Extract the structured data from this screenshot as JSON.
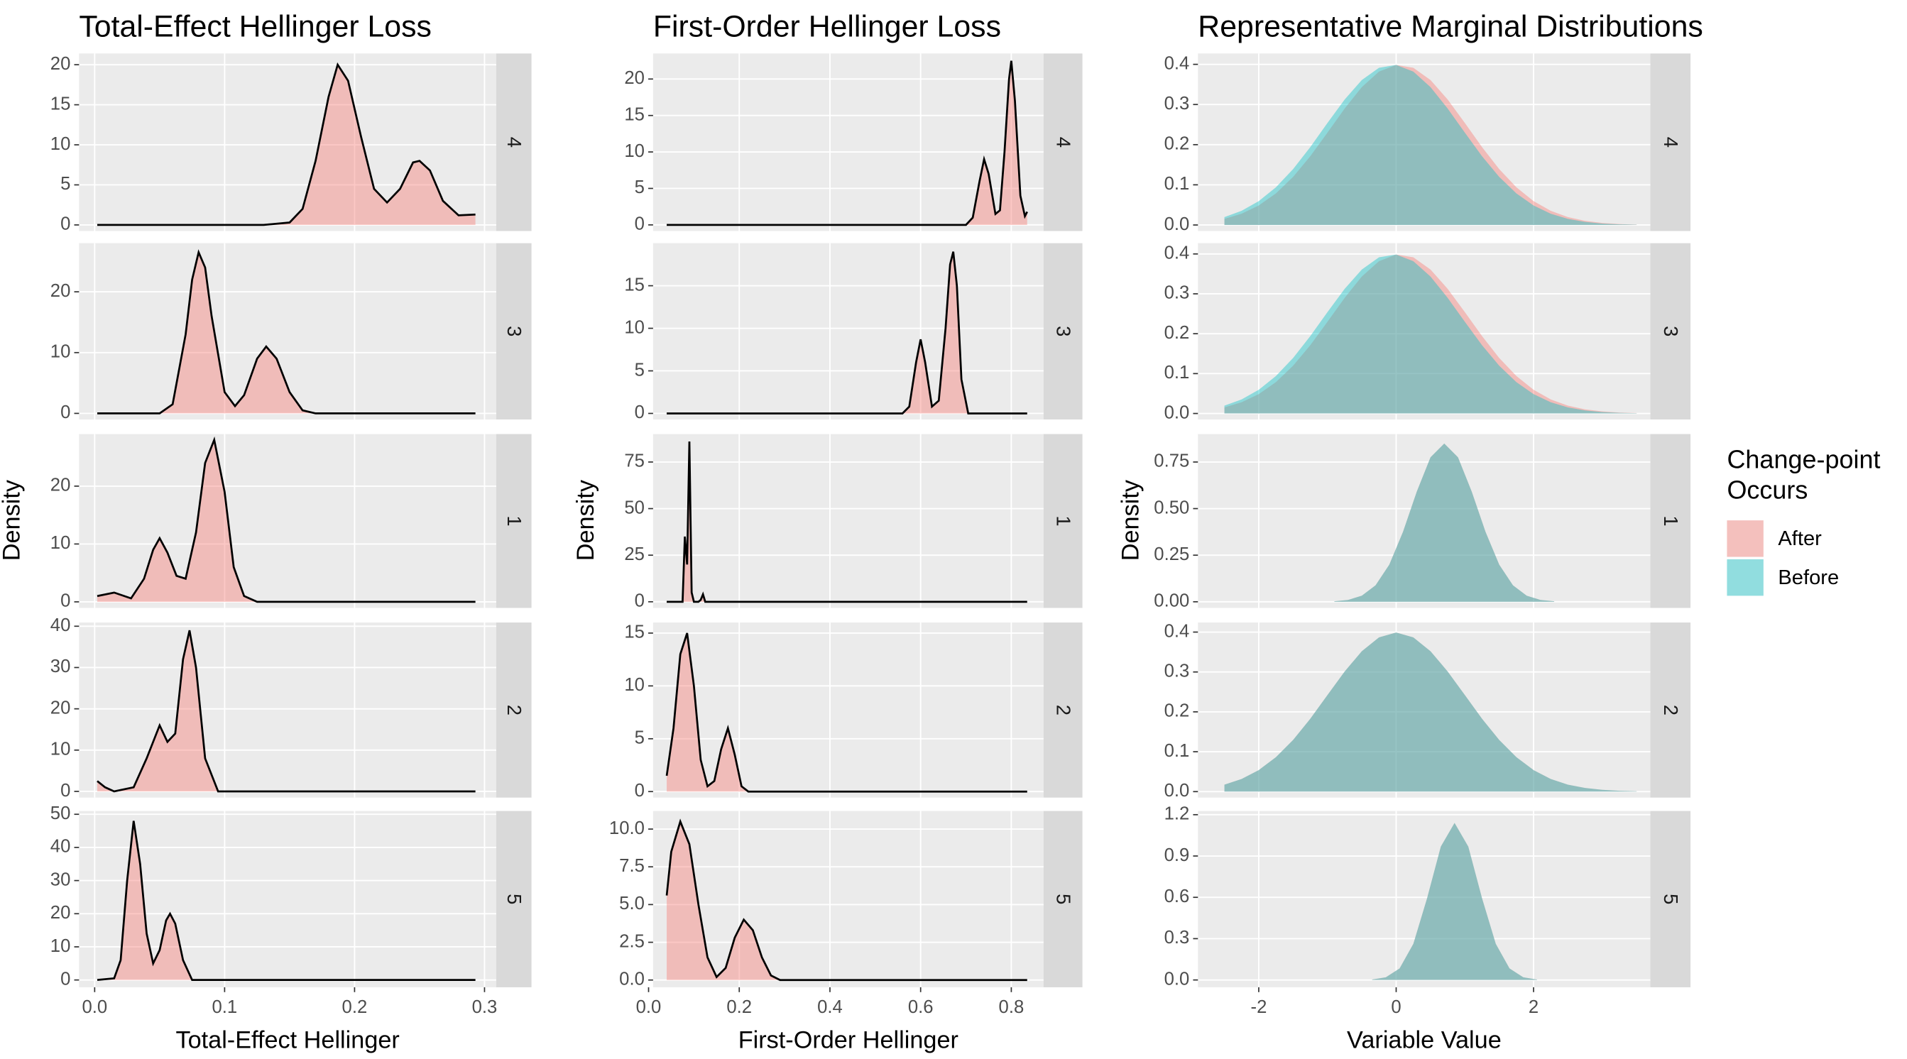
{
  "chart_data": [
    {
      "type": "density",
      "title": "Total-Effect Hellinger Loss",
      "x_label": "Total-Effect Hellinger",
      "y_label": "Density",
      "color": "#F8766D",
      "line_color": "#000000",
      "xlim": [
        -0.012,
        0.309
      ],
      "xticks": [
        {
          "value": 0,
          "label": "0.0"
        },
        {
          "value": 0.1,
          "label": "0.1"
        },
        {
          "value": 0.2,
          "label": "0.2"
        },
        {
          "value": 0.3,
          "label": "0.3"
        }
      ],
      "grid": true,
      "facets": [
        {
          "label": "4",
          "ylim": [
            -0.76,
            21.4
          ],
          "yticks": [
            0,
            5,
            10,
            15,
            20
          ],
          "x": [
            0.002,
            0.13,
            0.15,
            0.16,
            0.17,
            0.18,
            0.187,
            0.195,
            0.205,
            0.215,
            0.225,
            0.235,
            0.245,
            0.25,
            0.258,
            0.268,
            0.28,
            0.293
          ],
          "values": [
            0,
            0,
            0.3,
            2,
            8,
            16,
            20,
            18,
            11,
            4.5,
            2.8,
            4.5,
            7.8,
            8,
            6.8,
            3,
            1.2,
            1.3
          ]
        },
        {
          "label": "3",
          "ylim": [
            -1,
            28
          ],
          "yticks": [
            0,
            10,
            20
          ],
          "x": [
            0.002,
            0.05,
            0.06,
            0.07,
            0.075,
            0.08,
            0.085,
            0.09,
            0.1,
            0.108,
            0.115,
            0.125,
            0.132,
            0.14,
            0.15,
            0.16,
            0.17,
            0.293
          ],
          "values": [
            0,
            0,
            1.5,
            13,
            22,
            26.5,
            24,
            16,
            3.5,
            1.2,
            3,
            9,
            11,
            9,
            3.5,
            0.5,
            0,
            0
          ]
        },
        {
          "label": "1",
          "ylim": [
            -1.05,
            29
          ],
          "yticks": [
            0,
            10,
            20
          ],
          "x": [
            0.002,
            0.015,
            0.028,
            0.038,
            0.045,
            0.05,
            0.056,
            0.063,
            0.07,
            0.078,
            0.085,
            0.092,
            0.1,
            0.107,
            0.115,
            0.125,
            0.293
          ],
          "values": [
            1,
            1.6,
            0.6,
            4,
            9,
            11,
            8.5,
            4.5,
            4,
            12,
            24,
            28,
            19,
            6,
            1,
            0,
            0
          ]
        },
        {
          "label": "2",
          "ylim": [
            -1.5,
            40.9
          ],
          "yticks": [
            0,
            10,
            20,
            30,
            40
          ],
          "x": [
            0.002,
            0.008,
            0.015,
            0.03,
            0.04,
            0.05,
            0.056,
            0.062,
            0.068,
            0.073,
            0.078,
            0.085,
            0.095,
            0.293
          ],
          "values": [
            2.5,
            1,
            0,
            1,
            8,
            16,
            12,
            14,
            32,
            39,
            30,
            8,
            0,
            0
          ]
        },
        {
          "label": "5",
          "ylim": [
            -2.2,
            51
          ],
          "yticks": [
            0,
            10,
            20,
            30,
            40,
            50
          ],
          "x": [
            0.002,
            0.015,
            0.02,
            0.025,
            0.03,
            0.035,
            0.04,
            0.045,
            0.05,
            0.055,
            0.058,
            0.062,
            0.068,
            0.075,
            0.293
          ],
          "values": [
            0,
            0.5,
            6,
            30,
            48,
            35,
            14,
            5,
            9,
            18,
            20,
            17,
            6,
            0,
            0
          ]
        }
      ]
    },
    {
      "type": "density",
      "title": "First-Order Hellinger Loss",
      "x_label": "First-Order Hellinger",
      "y_label": "Density",
      "color": "#F8766D",
      "line_color": "#000000",
      "xlim": [
        0.01,
        0.871
      ],
      "xticks": [
        {
          "value": 0,
          "label": "0.0"
        },
        {
          "value": 0.2,
          "label": "0.2"
        },
        {
          "value": 0.4,
          "label": "0.4"
        },
        {
          "value": 0.6,
          "label": "0.6"
        },
        {
          "value": 0.8,
          "label": "0.8"
        }
      ],
      "grid": true,
      "facets": [
        {
          "label": "4",
          "ylim": [
            -0.84,
            23.5
          ],
          "yticks": [
            0,
            5,
            10,
            15,
            20
          ],
          "x": [
            0.04,
            0.7,
            0.715,
            0.73,
            0.74,
            0.75,
            0.765,
            0.775,
            0.785,
            0.795,
            0.8,
            0.808,
            0.82,
            0.83,
            0.835
          ],
          "values": [
            0,
            0,
            1,
            6,
            9,
            7,
            1.5,
            2,
            10,
            20,
            22.5,
            17,
            4,
            1.2,
            1.8
          ]
        },
        {
          "label": "3",
          "ylim": [
            -0.71,
            20
          ],
          "yticks": [
            0,
            5,
            10,
            15
          ],
          "x": [
            0.04,
            0.56,
            0.575,
            0.59,
            0.6,
            0.61,
            0.625,
            0.64,
            0.655,
            0.665,
            0.672,
            0.68,
            0.69,
            0.705,
            0.835
          ],
          "values": [
            0,
            0,
            0.8,
            6,
            8.7,
            6,
            0.8,
            1.5,
            10,
            17.5,
            19,
            15,
            4,
            0,
            0
          ]
        },
        {
          "label": "1",
          "ylim": [
            -3.3,
            90
          ],
          "yticks": [
            0,
            25,
            50,
            75
          ],
          "x": [
            0.04,
            0.075,
            0.08,
            0.085,
            0.09,
            0.095,
            0.1,
            0.11,
            0.115,
            0.12,
            0.125,
            0.835
          ],
          "values": [
            0,
            0,
            35,
            20,
            86,
            5,
            0,
            0,
            1,
            4,
            0,
            0
          ]
        },
        {
          "label": "2",
          "ylim": [
            -0.57,
            16
          ],
          "yticks": [
            0,
            5,
            10,
            15
          ],
          "x": [
            0.04,
            0.055,
            0.07,
            0.085,
            0.1,
            0.115,
            0.13,
            0.145,
            0.16,
            0.175,
            0.19,
            0.205,
            0.22,
            0.835
          ],
          "values": [
            1.5,
            6,
            13,
            15,
            10,
            3,
            0.5,
            1,
            4,
            6,
            3.5,
            0.5,
            0,
            0
          ]
        },
        {
          "label": "5",
          "ylim": [
            -0.48,
            11.2
          ],
          "yticks": [
            {
              "value": 0,
              "label": "0.0"
            },
            {
              "value": 2.5,
              "label": "2.5"
            },
            {
              "value": 5,
              "label": "5.0"
            },
            {
              "value": 7.5,
              "label": "7.5"
            },
            {
              "value": 10,
              "label": "10.0"
            }
          ],
          "x": [
            0.04,
            0.05,
            0.07,
            0.09,
            0.11,
            0.13,
            0.15,
            0.17,
            0.19,
            0.21,
            0.23,
            0.25,
            0.27,
            0.29,
            0.835
          ],
          "values": [
            5.6,
            8.5,
            10.5,
            9,
            5,
            1.5,
            0.2,
            0.8,
            2.8,
            4,
            3.3,
            1.5,
            0.3,
            0,
            0
          ]
        }
      ]
    },
    {
      "type": "density",
      "title": "Representative Marginal Distributions",
      "x_label": "Variable Value",
      "y_label": "Density",
      "xlim": [
        -2.885,
        3.7
      ],
      "xticks": [
        -2,
        0,
        2
      ],
      "grid": true,
      "legend_title": "Change-point Occurs",
      "series": [
        {
          "name": "After",
          "color": "#F8766D"
        },
        {
          "name": "Before",
          "color": "#00BFC4"
        }
      ],
      "facets": [
        {
          "label": "4",
          "ylim": [
            -0.015,
            0.427
          ],
          "yticks": [
            {
              "value": 0,
              "label": "0.0"
            },
            0.1,
            0.2,
            0.3,
            0.4
          ],
          "x": [
            -2.5,
            -2.25,
            -2,
            -1.75,
            -1.5,
            -1.25,
            -1,
            -0.75,
            -0.5,
            -0.25,
            0,
            0.25,
            0.5,
            0.75,
            1,
            1.25,
            1.5,
            1.75,
            2,
            2.25,
            2.5,
            2.75,
            3,
            3.25,
            3.5
          ],
          "series": [
            {
              "values": [
                0.0153,
                0.0281,
                0.0486,
                0.0787,
                0.1198,
                0.1712,
                0.2299,
                0.2898,
                0.3433,
                0.3819,
                0.3984,
                0.3915,
                0.3609,
                0.3124,
                0.2541,
                0.194,
                0.1392,
                0.0939,
                0.0594,
                0.0353,
                0.0197,
                0.0104,
                0.0051,
                0.0023,
                0.0011
              ]
            },
            {
              "values": [
                0.0197,
                0.0353,
                0.0594,
                0.0939,
                0.1392,
                0.194,
                0.2541,
                0.3124,
                0.3609,
                0.3915,
                0.3984,
                0.3819,
                0.3433,
                0.2898,
                0.2299,
                0.1712,
                0.1198,
                0.0787,
                0.0486,
                0.0281,
                0.0153,
                0.0077,
                0.0036,
                0.0016,
                0.0007
              ]
            }
          ]
        },
        {
          "label": "3",
          "ylim": [
            -0.015,
            0.427
          ],
          "yticks": [
            {
              "value": 0,
              "label": "0.0"
            },
            0.1,
            0.2,
            0.3,
            0.4
          ],
          "x": [
            -2.5,
            -2.25,
            -2,
            -1.75,
            -1.5,
            -1.25,
            -1,
            -0.75,
            -0.5,
            -0.25,
            0,
            0.25,
            0.5,
            0.75,
            1,
            1.25,
            1.5,
            1.75,
            2,
            2.25,
            2.5,
            2.75,
            3,
            3.25,
            3.5
          ],
          "series": [
            {
              "values": [
                0.0153,
                0.0281,
                0.0486,
                0.0787,
                0.1198,
                0.1712,
                0.2299,
                0.2898,
                0.3433,
                0.3819,
                0.3984,
                0.3915,
                0.3609,
                0.3124,
                0.2541,
                0.194,
                0.1392,
                0.0939,
                0.0594,
                0.0353,
                0.0197,
                0.0104,
                0.0051,
                0.0023,
                0.0011
              ]
            },
            {
              "values": [
                0.0197,
                0.0353,
                0.0594,
                0.0939,
                0.1392,
                0.194,
                0.2541,
                0.3124,
                0.3609,
                0.3915,
                0.3984,
                0.3819,
                0.3433,
                0.2898,
                0.2299,
                0.1712,
                0.1198,
                0.0787,
                0.0486,
                0.0281,
                0.0153,
                0.0077,
                0.0036,
                0.0016,
                0.0007
              ]
            }
          ]
        },
        {
          "label": "1",
          "ylim": [
            -0.033,
            0.9
          ],
          "yticks": [
            {
              "value": 0,
              "label": "0.00"
            },
            0.25,
            {
              "value": 0.5,
              "label": "0.50"
            },
            0.75
          ],
          "x": [
            -0.9,
            -0.7,
            -0.5,
            -0.3,
            -0.1,
            0.1,
            0.3,
            0.5,
            0.7,
            0.9,
            1.1,
            1.3,
            1.5,
            1.7,
            1.9,
            2.1,
            2.3
          ],
          "series": [
            {
              "values": [
                0.0026,
                0.01,
                0.0326,
                0.0883,
                0.1994,
                0.3758,
                0.591,
                0.7756,
                0.849,
                0.7756,
                0.591,
                0.3758,
                0.1994,
                0.0883,
                0.0326,
                0.01,
                0.0026
              ]
            },
            {
              "values": [
                0.0026,
                0.01,
                0.0326,
                0.0883,
                0.1994,
                0.3758,
                0.591,
                0.7756,
                0.849,
                0.7756,
                0.591,
                0.3758,
                0.1994,
                0.0883,
                0.0326,
                0.01,
                0.0026
              ]
            }
          ]
        },
        {
          "label": "2",
          "ylim": [
            -0.015,
            0.424
          ],
          "yticks": [
            {
              "value": 0,
              "label": "0.0"
            },
            0.1,
            0.2,
            0.3,
            0.4
          ],
          "x": [
            -2.5,
            -2.25,
            -2,
            -1.75,
            -1.5,
            -1.25,
            -1,
            -0.75,
            -0.5,
            -0.25,
            0,
            0.25,
            0.5,
            0.75,
            1,
            1.25,
            1.5,
            1.75,
            2,
            2.25,
            2.5,
            2.75,
            3,
            3.25,
            3.5
          ],
          "series": [
            {
              "values": [
                0.0175,
                0.0317,
                0.054,
                0.0863,
                0.1295,
                0.1826,
                0.242,
                0.3011,
                0.3521,
                0.3867,
                0.3989,
                0.3867,
                0.3521,
                0.3011,
                0.242,
                0.1826,
                0.1295,
                0.0863,
                0.054,
                0.0317,
                0.0175,
                0.0091,
                0.0044,
                0.002,
                0.0009
              ]
            },
            {
              "values": [
                0.0175,
                0.0317,
                0.054,
                0.0863,
                0.1295,
                0.1826,
                0.242,
                0.3011,
                0.3521,
                0.3867,
                0.3989,
                0.3867,
                0.3521,
                0.3011,
                0.242,
                0.1826,
                0.1295,
                0.0863,
                0.054,
                0.0317,
                0.0175,
                0.0091,
                0.0044,
                0.002,
                0.0009
              ]
            }
          ]
        },
        {
          "label": "5",
          "ylim": [
            -0.053,
            1.227
          ],
          "yticks": [
            {
              "value": 0,
              "label": "0.0"
            },
            0.3,
            0.6,
            0.9,
            1.2
          ],
          "x": [
            -0.35,
            -0.15,
            0.05,
            0.25,
            0.45,
            0.65,
            0.85,
            1.05,
            1.25,
            1.45,
            1.65,
            1.85,
            2.05
          ],
          "series": [
            {
              "values": [
                0.0032,
                0.0192,
                0.0837,
                0.2623,
                0.5934,
                0.9683,
                1.14,
                0.9683,
                0.5934,
                0.2623,
                0.0837,
                0.0192,
                0.0032
              ]
            },
            {
              "values": [
                0.0032,
                0.0192,
                0.0837,
                0.2623,
                0.5934,
                0.9683,
                1.14,
                0.9683,
                0.5934,
                0.2623,
                0.0837,
                0.0192,
                0.0032
              ]
            }
          ]
        }
      ]
    }
  ]
}
